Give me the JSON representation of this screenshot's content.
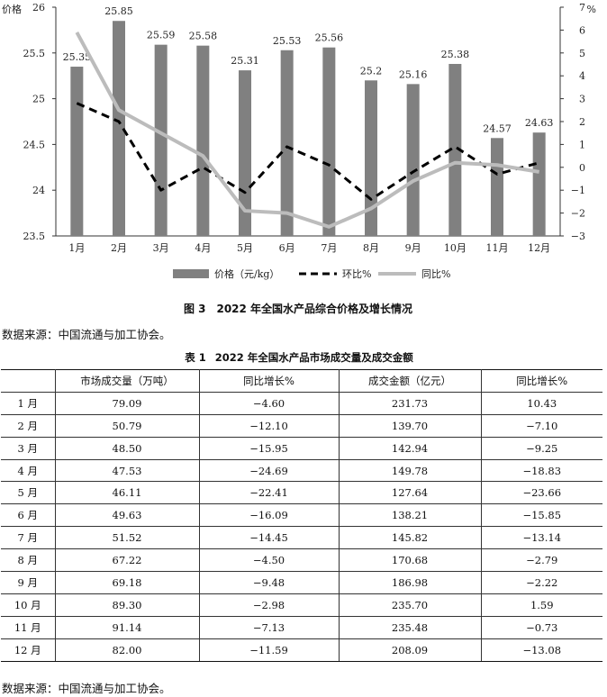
{
  "figure": {
    "caption_number": "图 3",
    "caption_title": "2022 年全国水产品综合价格及增长情况",
    "source": "数据来源：中国流通与加工协会。"
  },
  "chart_data": {
    "type": "bar",
    "categories": [
      "1月",
      "2月",
      "3月",
      "4月",
      "5月",
      "6月",
      "7月",
      "8月",
      "9月",
      "10月",
      "11月",
      "12月"
    ],
    "series": [
      {
        "name": "价格（元/kg）",
        "kind": "bar",
        "axis": "left",
        "color": "#808080",
        "values": [
          25.35,
          25.85,
          25.59,
          25.58,
          25.31,
          25.53,
          25.56,
          25.2,
          25.16,
          25.38,
          24.57,
          24.63
        ],
        "labels": [
          "25.35",
          "25.85",
          "25.59",
          "25.58",
          "25.31",
          "25.53",
          "25.56",
          "25.2",
          "25.16",
          "25.38",
          "24.57",
          "24.63"
        ]
      },
      {
        "name": "环比%",
        "kind": "line",
        "style": "dashed",
        "axis": "right",
        "color": "#000000",
        "values": [
          2.8,
          2.0,
          -1.0,
          0.0,
          -1.1,
          0.9,
          0.1,
          -1.4,
          -0.2,
          0.9,
          -0.3,
          0.2
        ]
      },
      {
        "name": "同比%",
        "kind": "line",
        "style": "solid",
        "axis": "right",
        "color": "#bcbcbc",
        "values": [
          5.9,
          2.5,
          1.5,
          0.5,
          -1.9,
          -2.0,
          -2.6,
          -1.8,
          -0.6,
          0.2,
          0.1,
          -0.2
        ]
      }
    ],
    "y_left": {
      "label": "价格",
      "min": 23.5,
      "max": 26,
      "ticks": [
        "23.5",
        "24",
        "24.5",
        "25",
        "25.5",
        "26"
      ]
    },
    "y_right": {
      "label": "%",
      "min": -3,
      "max": 7,
      "ticks": [
        "−3",
        "−2",
        "−1",
        "0",
        "1",
        "2",
        "3",
        "4",
        "5",
        "6",
        "7"
      ]
    },
    "grid": false,
    "legend_position": "bottom"
  },
  "table": {
    "caption_number": "表 1",
    "caption_title": "2022 年全国水产品市场成交量及成交金额",
    "headers": [
      "",
      "市场成交量（万吨）",
      "同比增长%",
      "成交金额（亿元）",
      "同比增长%"
    ],
    "rows": [
      [
        "1 月",
        "79.09",
        "−4.60",
        "231.73",
        "10.43"
      ],
      [
        "2 月",
        "50.79",
        "−12.10",
        "139.70",
        "−7.10"
      ],
      [
        "3 月",
        "48.50",
        "−15.95",
        "142.94",
        "−9.25"
      ],
      [
        "4 月",
        "47.53",
        "−24.69",
        "149.78",
        "−18.83"
      ],
      [
        "5 月",
        "46.11",
        "−22.41",
        "127.64",
        "−23.66"
      ],
      [
        "6 月",
        "49.63",
        "−16.09",
        "138.21",
        "−15.85"
      ],
      [
        "7 月",
        "51.52",
        "−14.45",
        "145.82",
        "−13.14"
      ],
      [
        "8 月",
        "67.22",
        "−4.50",
        "170.68",
        "−2.79"
      ],
      [
        "9 月",
        "69.18",
        "−9.48",
        "186.98",
        "−2.22"
      ],
      [
        "10 月",
        "89.30",
        "−2.98",
        "235.70",
        "1.59"
      ],
      [
        "11 月",
        "91.14",
        "−7.13",
        "235.48",
        "−0.73"
      ],
      [
        "12 月",
        "82.00",
        "−11.59",
        "208.09",
        "−13.08"
      ]
    ],
    "source": "数据来源：中国流通与加工协会。"
  }
}
